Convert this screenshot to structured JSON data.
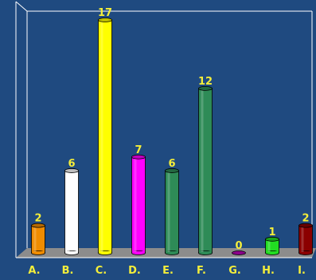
{
  "chart_data": {
    "type": "bar",
    "style": "3d-cylinder",
    "title": "",
    "xlabel": "",
    "ylabel": "",
    "ylim": [
      0,
      17
    ],
    "grid": false,
    "legend": "none",
    "categories": [
      "A.",
      "B.",
      "C.",
      "D.",
      "E.",
      "F.",
      "G.",
      "H.",
      "I."
    ],
    "values": [
      2,
      6,
      17,
      7,
      6,
      12,
      0,
      1,
      2
    ],
    "data_labels": [
      "2",
      "6",
      "17",
      "7",
      "6",
      "12",
      "0",
      "1",
      "2"
    ],
    "colors": [
      "#f08c00",
      "#ffffff",
      "#ffff00",
      "#ff00ff",
      "#2e8b57",
      "#2e8b57",
      "#8b008b",
      "#22dd22",
      "#8b0000"
    ],
    "background": "#1f4a80",
    "floor_color": "#8c8c8c",
    "label_color": "#f4ee3a"
  }
}
